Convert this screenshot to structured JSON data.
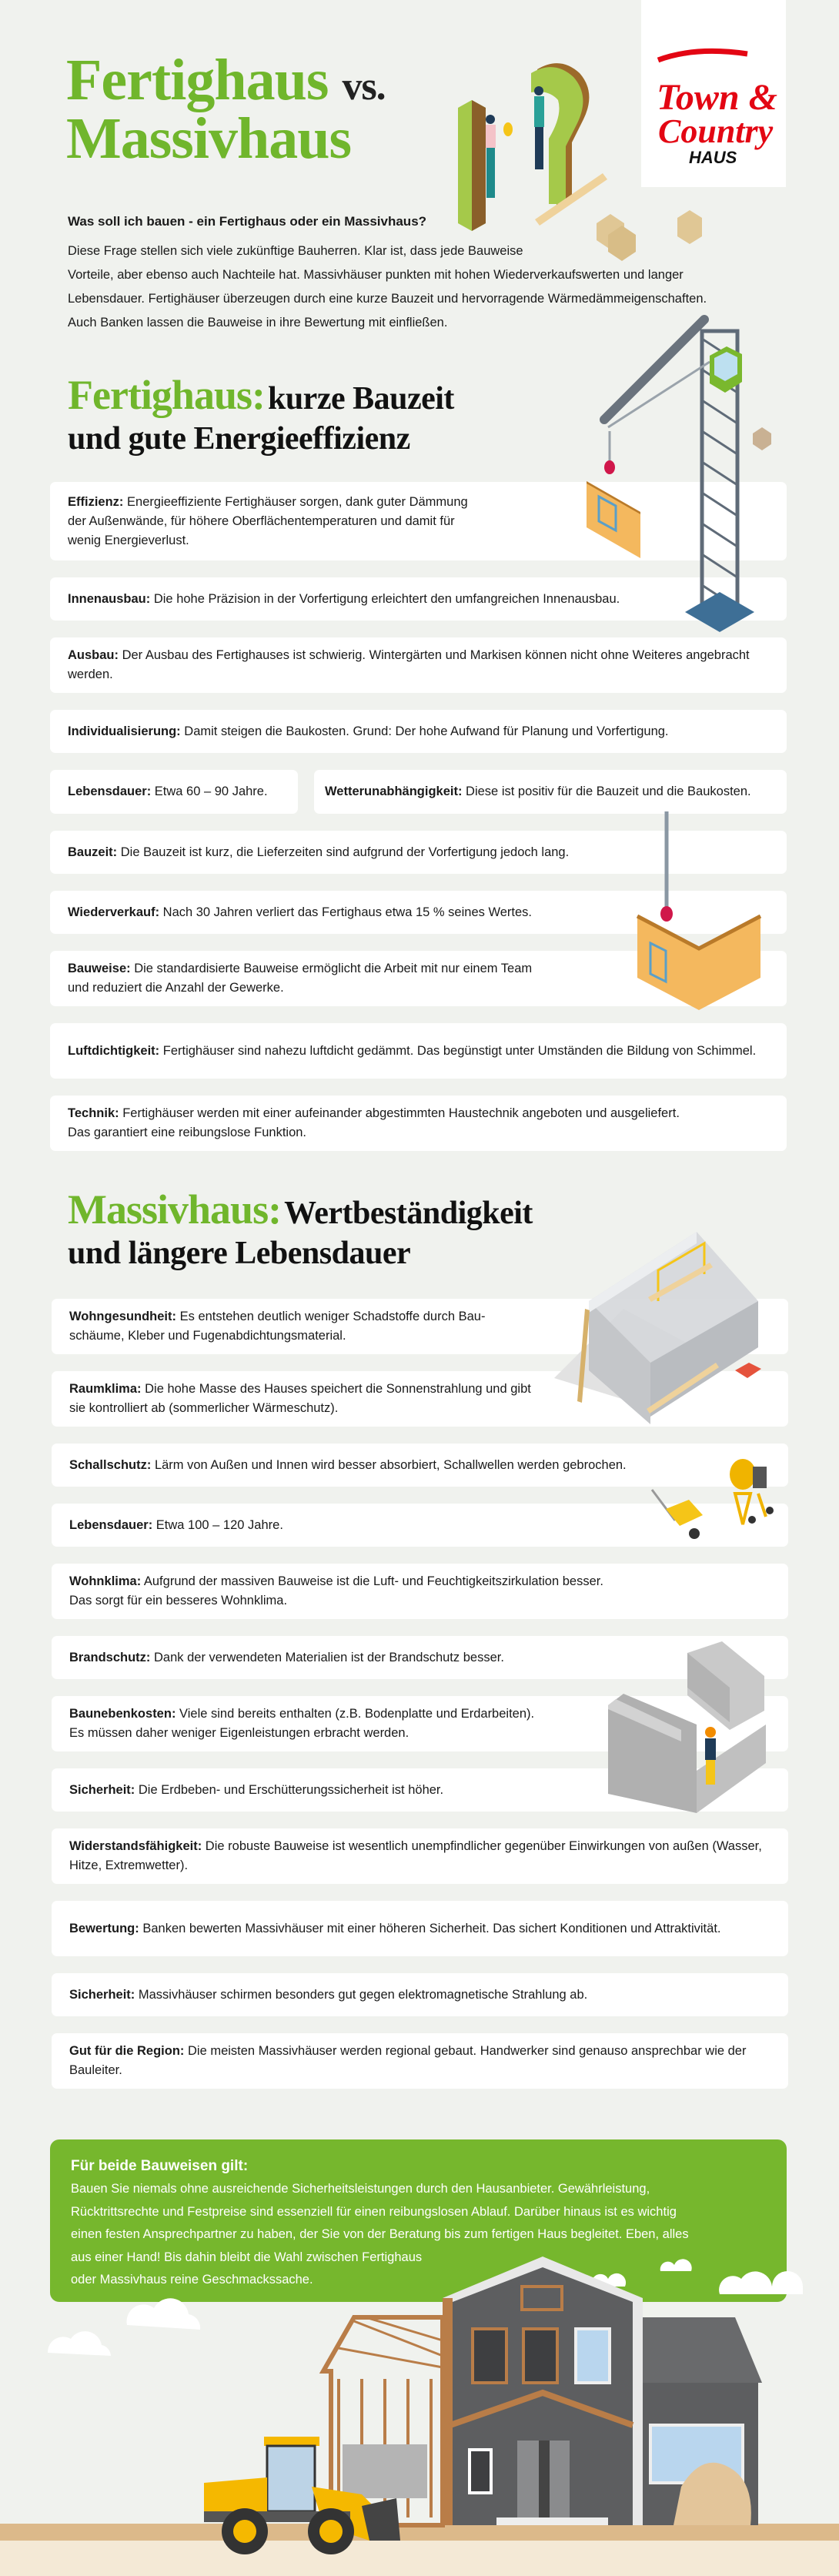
{
  "logo": {
    "line1": "Town &",
    "line2": "Country",
    "line3": "HAUS",
    "color": "#e30613"
  },
  "hero": {
    "title_part1": "Fertighaus",
    "title_vs": "vs.",
    "title_part2": "Massivhaus",
    "question": "Was soll ich bauen - ein Fertighaus oder ein Massivhaus?",
    "intro_lines": [
      "Diese Frage stellen sich viele zukünftige Bauherren. Klar ist, dass jede Bauweise",
      "Vorteile, aber ebenso auch Nachteile hat. Massivhäuser punkten mit hohen Wiederverkaufswerten und langer",
      "Lebensdauer. Fertighäuser überzeugen durch eine kurze Bauzeit und hervorragende Wärmedämmeigenschaften.",
      "Auch Banken lassen die Bauweise in ihre Bewertung mit einfließen."
    ]
  },
  "fertighaus": {
    "title_green": "Fertighaus:",
    "title_black": "kurze Bauzeit",
    "title_line2": "und gute Energieeffizienz",
    "cards": [
      {
        "label": "Effizienz:",
        "text": " Energieeffiziente Fertighäuser sorgen, dank guter Dämmung\nder Außenwände, für höhere Oberflächentemperaturen und damit für\nwenig Energieverlust."
      },
      {
        "label": "Innenausbau:",
        "text": "  Die hohe Präzision in der Vorfertigung erleichtert den umfangreichen Innenausbau."
      },
      {
        "label": "Ausbau:",
        "text": " Der Ausbau des Fertighauses ist schwierig. Wintergärten und Markisen können nicht ohne Weiteres angebracht werden."
      },
      {
        "label": "Individualisierung:",
        "text": " Damit steigen die Baukosten. Grund: Der hohe Aufwand für Planung und Vorfertigung."
      },
      {
        "label": "Lebensdauer:",
        "text": "  Etwa 60 – 90 Jahre."
      },
      {
        "label": "Wetterunabhängigkeit:",
        "text": " Diese ist positiv für die Bauzeit und die Baukosten."
      },
      {
        "label": "Bauzeit:",
        "text": " Die Bauzeit ist kurz, die Lieferzeiten sind aufgrund der Vorfertigung jedoch lang."
      },
      {
        "label": "Wiederverkauf:",
        "text": "  Nach 30 Jahren verliert das Fertighaus etwa 15 % seines Wertes."
      },
      {
        "label": "Bauweise:",
        "text": " Die standardisierte Bauweise ermöglicht die Arbeit mit nur einem Team\nund reduziert die Anzahl der Gewerke."
      },
      {
        "label": "Luftdichtigkeit:",
        "text": " Fertighäuser sind nahezu luftdicht gedämmt. Das begünstigt unter Umständen die Bildung von Schimmel."
      },
      {
        "label": "Technik:",
        "text": " Fertighäuser werden mit einer aufeinander abgestimmten Haustechnik angeboten und ausgeliefert.\nDas garantiert eine reibungslose Funktion."
      }
    ]
  },
  "massivhaus": {
    "title_green": "Massivhaus:",
    "title_black": "Wertbeständigkeit",
    "title_line2": "und längere Lebensdauer",
    "cards": [
      {
        "label": "Wohngesundheit:",
        "text": " Es entstehen deutlich weniger Schadstoffe durch Bau-\nschäume, Kleber und Fugenabdichtungsmaterial."
      },
      {
        "label": "Raumklima:",
        "text": " Die hohe Masse des Hauses speichert die Sonnenstrahlung und gibt\nsie kontrolliert ab (sommerlicher Wärmeschutz)."
      },
      {
        "label": "Schallschutz:",
        "text": " Lärm von Außen und Innen wird besser absorbiert, Schallwellen werden gebrochen."
      },
      {
        "label": "Lebensdauer:",
        "text": "  Etwa 100 – 120 Jahre."
      },
      {
        "label": "Wohnklima:",
        "text": " Aufgrund der massiven Bauweise ist die Luft- und Feuchtigkeitszirkulation besser.\nDas sorgt für ein besseres Wohnklima."
      },
      {
        "label": "Brandschutz:",
        "text": " Dank der verwendeten Materialien ist der Brandschutz besser."
      },
      {
        "label": "Baunebenkosten:",
        "text": " Viele sind bereits enthalten (z.B. Bodenplatte und Erdarbeiten).\nEs müssen daher weniger Eigenleistungen erbracht werden."
      },
      {
        "label": "Sicherheit:",
        "text": " Die Erdbeben- und Erschütterungssicherheit ist höher."
      },
      {
        "label": "Widerstandsfähigkeit:",
        "text": " Die robuste Bauweise ist wesentlich unempfindlicher gegenüber Einwirkungen von außen (Wasser, Hitze, Extremwetter)."
      },
      {
        "label": "Bewertung:",
        "text": " Banken bewerten Massivhäuser mit einer höheren Sicherheit. Das sichert Konditionen und Attraktivität."
      },
      {
        "label": "Sicherheit:",
        "text": " Massivhäuser schirmen besonders gut gegen elektromagnetische Strahlung ab."
      },
      {
        "label": "Gut für die Region:",
        "text": " Die meisten Massivhäuser werden regional gebaut. Handwerker sind genauso ansprechbar wie der Bauleiter."
      }
    ]
  },
  "summary": {
    "heading": "Für beide Bauweisen gilt:",
    "lines": [
      "Bauen Sie niemals ohne ausreichende Sicherheitsleistungen durch den Hausanbieter. Gewährleistung,",
      "Rücktrittsrechte und Festpreise sind essenziell für einen reibungslosen Ablauf. Darüber hinaus ist es wichtig",
      "einen festen Ansprechpartner zu haben, der Sie von der Beratung bis zum fertigen Haus begleitet. Eben, alles",
      "aus einer Hand! Bis dahin bleibt die Wahl zwischen Fertighaus",
      "oder Massivhaus reine Geschmackssache."
    ]
  },
  "colors": {
    "accent_green": "#76b72d",
    "title_green": "#70b62c",
    "background": "#f0f2ee",
    "card": "#ffffff"
  },
  "icons": [
    "question-mark-people-illustration",
    "crane-illustration",
    "wall-panel-illustration",
    "brick-house-illustration",
    "wheelbarrow-icon",
    "cement-mixer-icon",
    "mason-worker-illustration",
    "house-construction-illustration",
    "wheel-loader-illustration",
    "cloud-icon"
  ]
}
